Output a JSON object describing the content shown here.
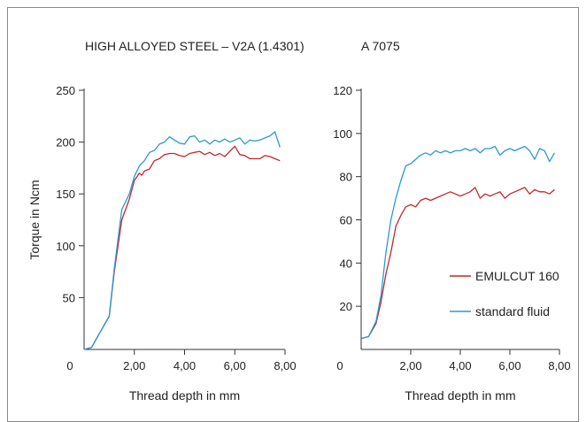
{
  "chart_data": [
    {
      "type": "line",
      "title": "HIGH ALLOYED STEEL – V2A (1.4301)",
      "xlabel": "Thread depth in mm",
      "ylabel": "Torque in Ncm",
      "xlim": [
        0,
        8
      ],
      "ylim": [
        0,
        250
      ],
      "x_ticks": [
        "2,00",
        "4,00",
        "6,00",
        "8,00"
      ],
      "y_ticks": [
        "50",
        "100",
        "150",
        "200",
        "250"
      ],
      "origin_label": "0",
      "grid": false,
      "series": [
        {
          "name": "EMULCUT 160",
          "color": "#c0282d",
          "x": [
            0,
            0.3,
            0.6,
            1.0,
            1.2,
            1.5,
            1.8,
            2.0,
            2.2,
            2.3,
            2.4,
            2.6,
            2.8,
            3.0,
            3.2,
            3.4,
            3.6,
            3.8,
            4.0,
            4.2,
            4.4,
            4.6,
            4.8,
            5.0,
            5.2,
            5.4,
            5.6,
            5.8,
            6.0,
            6.2,
            6.4,
            6.6,
            6.8,
            7.0,
            7.2,
            7.4,
            7.6,
            7.8
          ],
          "y": [
            0,
            2,
            15,
            32,
            75,
            125,
            145,
            163,
            170,
            168,
            172,
            174,
            182,
            184,
            188,
            189,
            189,
            187,
            186,
            189,
            190,
            191,
            188,
            190,
            187,
            189,
            186,
            191,
            196,
            188,
            187,
            184,
            184,
            184,
            187,
            186,
            184,
            182
          ]
        },
        {
          "name": "standard fluid",
          "color": "#2a9ad0",
          "x": [
            0,
            0.3,
            0.6,
            1.0,
            1.2,
            1.5,
            1.8,
            2.0,
            2.2,
            2.4,
            2.6,
            2.8,
            3.0,
            3.2,
            3.4,
            3.6,
            3.8,
            4.0,
            4.2,
            4.4,
            4.6,
            4.8,
            5.0,
            5.2,
            5.4,
            5.6,
            5.8,
            6.0,
            6.2,
            6.4,
            6.6,
            6.8,
            7.0,
            7.2,
            7.4,
            7.6,
            7.8
          ],
          "y": [
            0,
            2,
            15,
            32,
            78,
            135,
            150,
            167,
            177,
            182,
            190,
            192,
            198,
            200,
            205,
            202,
            199,
            198,
            205,
            206,
            200,
            202,
            198,
            202,
            200,
            203,
            200,
            202,
            204,
            198,
            202,
            201,
            202,
            204,
            206,
            210,
            195
          ]
        }
      ]
    },
    {
      "type": "line",
      "title": "A 7075",
      "xlabel": "Thread depth in mm",
      "ylabel": "",
      "xlim": [
        0,
        8
      ],
      "ylim": [
        0,
        120
      ],
      "x_ticks": [
        "2,00",
        "4,00",
        "6,00",
        "8,00"
      ],
      "y_ticks": [
        "20",
        "40",
        "60",
        "80",
        "100",
        "120"
      ],
      "origin_label": "0",
      "grid": false,
      "legend_position": "bottom-right",
      "series": [
        {
          "name": "EMULCUT 160",
          "color": "#c0282d",
          "x": [
            0,
            0.3,
            0.6,
            0.8,
            1.0,
            1.2,
            1.4,
            1.6,
            1.8,
            2.0,
            2.2,
            2.4,
            2.6,
            2.8,
            3.0,
            3.2,
            3.4,
            3.6,
            3.8,
            4.0,
            4.2,
            4.4,
            4.6,
            4.8,
            5.0,
            5.2,
            5.4,
            5.6,
            5.8,
            6.0,
            6.2,
            6.4,
            6.6,
            6.8,
            7.0,
            7.2,
            7.4,
            7.6,
            7.8
          ],
          "y": [
            5,
            6,
            12,
            22,
            35,
            45,
            57,
            62,
            66,
            67,
            66,
            69,
            70,
            69,
            70,
            71,
            72,
            73,
            72,
            71,
            72,
            73,
            75,
            70,
            72,
            71,
            72,
            73,
            70,
            72,
            73,
            74,
            75,
            72,
            74,
            73,
            73,
            72,
            74
          ]
        },
        {
          "name": "standard fluid",
          "color": "#2a9ad0",
          "x": [
            0,
            0.3,
            0.6,
            0.8,
            1.0,
            1.2,
            1.4,
            1.6,
            1.8,
            2.0,
            2.2,
            2.4,
            2.6,
            2.8,
            3.0,
            3.2,
            3.4,
            3.6,
            3.8,
            4.0,
            4.2,
            4.4,
            4.6,
            4.8,
            5.0,
            5.2,
            5.4,
            5.6,
            5.8,
            6.0,
            6.2,
            6.4,
            6.6,
            6.8,
            7.0,
            7.2,
            7.4,
            7.6,
            7.8
          ],
          "y": [
            5,
            6,
            13,
            25,
            45,
            60,
            70,
            78,
            85,
            86,
            88,
            90,
            91,
            90,
            92,
            91,
            92,
            91,
            92,
            92,
            93,
            92,
            93,
            91,
            93,
            93,
            94,
            90,
            92,
            93,
            92,
            93,
            94,
            92,
            88,
            93,
            92,
            87,
            91
          ]
        }
      ]
    }
  ]
}
